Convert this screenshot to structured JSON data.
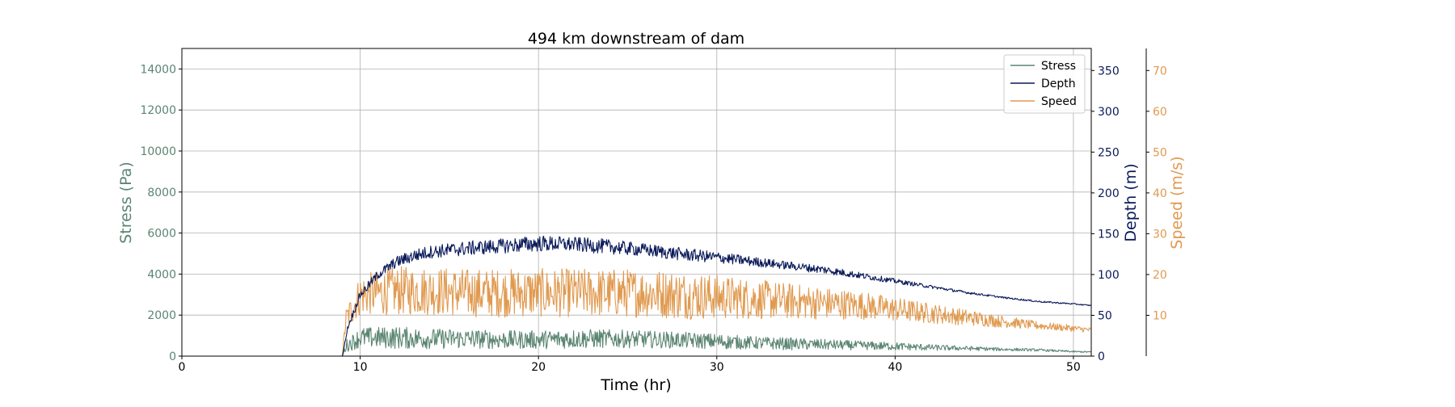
{
  "chart_data": {
    "type": "line",
    "title": "494 km downstream of dam",
    "xlabel": "Time (hr)",
    "xlim": [
      0,
      51
    ],
    "xticks": [
      0,
      10,
      20,
      30,
      40,
      50
    ],
    "grid": true,
    "legend_position": "top-right",
    "axes": {
      "stress": {
        "label": "Stress (Pa)",
        "side": "left",
        "ylim": [
          0,
          15000
        ],
        "ticks": [
          0,
          2000,
          4000,
          6000,
          8000,
          10000,
          12000,
          14000
        ],
        "color": "#5b8572"
      },
      "depth": {
        "label": "Depth (m)",
        "side": "right",
        "ylim": [
          0,
          377
        ],
        "ticks": [
          0,
          50,
          100,
          150,
          200,
          250,
          300,
          350
        ],
        "color": "#0a1a5a"
      },
      "speed": {
        "label": "Speed (m/s)",
        "side": "right-offset",
        "ylim": [
          0,
          75.4
        ],
        "ticks": [
          10,
          20,
          30,
          40,
          50,
          60,
          70
        ],
        "color": "#e09a50"
      }
    },
    "series": [
      {
        "name": "Stress",
        "axis": "stress",
        "color": "#5b8572",
        "x": [
          0,
          9,
          9.2,
          10,
          12,
          14,
          16,
          18,
          20,
          22,
          24,
          26,
          28,
          30,
          32,
          34,
          36,
          38,
          40,
          42,
          44,
          46,
          48,
          50,
          51
        ],
        "y": [
          0,
          0,
          500,
          900,
          900,
          850,
          850,
          800,
          800,
          850,
          850,
          820,
          780,
          720,
          650,
          600,
          560,
          520,
          480,
          420,
          380,
          330,
          300,
          220,
          200
        ],
        "amp": [
          0,
          0,
          300,
          500,
          550,
          500,
          480,
          450,
          450,
          480,
          450,
          420,
          400,
          380,
          320,
          300,
          260,
          220,
          200,
          150,
          110,
          80,
          60,
          40,
          30
        ]
      },
      {
        "name": "Depth",
        "axis": "depth",
        "color": "#0a1a5a",
        "x": [
          0,
          9,
          9.3,
          10,
          11,
          12,
          13,
          14,
          16,
          18,
          20,
          22,
          24,
          26,
          28,
          30,
          32,
          34,
          36,
          38,
          40,
          42,
          44,
          46,
          48,
          50,
          51
        ],
        "y": [
          0,
          0,
          35,
          75,
          100,
          115,
          123,
          128,
          132,
          135,
          138,
          137,
          134,
          130,
          125,
          121,
          116,
          111,
          106,
          99,
          92,
          85,
          78,
          72,
          67,
          64,
          62
        ],
        "amp": [
          0,
          0,
          3,
          5,
          6,
          7,
          8,
          8,
          9,
          9,
          10,
          9,
          9,
          8,
          8,
          7,
          6,
          5,
          5,
          4,
          3,
          2,
          1.5,
          1,
          1,
          0.8,
          0.5
        ]
      },
      {
        "name": "Speed",
        "axis": "speed",
        "color": "#e09a50",
        "x": [
          0,
          9,
          9.2,
          10,
          12,
          14,
          16,
          18,
          20,
          22,
          24,
          26,
          28,
          30,
          32,
          34,
          36,
          38,
          40,
          42,
          44,
          46,
          48,
          50,
          51
        ],
        "y": [
          0,
          0,
          9,
          15,
          16,
          16,
          15.5,
          15.5,
          15.5,
          15.5,
          15.5,
          15.5,
          15,
          14.5,
          14,
          13.5,
          13,
          12.5,
          11.5,
          10.5,
          9.5,
          8.5,
          7.5,
          6.8,
          6.4
        ],
        "amp": [
          0,
          0,
          3,
          5,
          6,
          6,
          6,
          6,
          6,
          6,
          6,
          6,
          6,
          5.5,
          5,
          4.5,
          4,
          3.5,
          3,
          2.5,
          2,
          1.5,
          1,
          0.8,
          0.6
        ]
      }
    ]
  }
}
